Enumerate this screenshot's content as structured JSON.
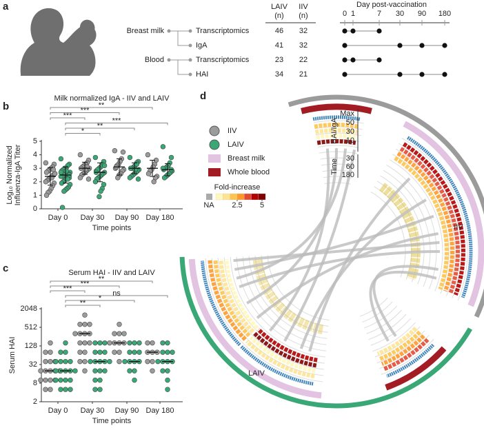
{
  "panel_a": {
    "label": "a",
    "header": {
      "laiv": [
        "LAIV",
        "(n)"
      ],
      "iiv": [
        "IIV",
        "(n)"
      ],
      "timeline_title": "Day post-vaccination"
    },
    "days": [
      0,
      1,
      7,
      30,
      90,
      180
    ],
    "groups": [
      {
        "name": "Breast milk",
        "assays": [
          {
            "name": "Transcriptomics",
            "laiv_n": 46,
            "iiv_n": 32,
            "days": [
              0,
              1,
              7
            ]
          },
          {
            "name": "IgA",
            "laiv_n": 41,
            "iiv_n": 32,
            "days": [
              0,
              30,
              90,
              180
            ]
          }
        ]
      },
      {
        "name": "Blood",
        "assays": [
          {
            "name": "Transcriptomics",
            "laiv_n": 23,
            "iiv_n": 22,
            "days": [
              0,
              1,
              7
            ]
          },
          {
            "name": "HAI",
            "laiv_n": 34,
            "iiv_n": 21,
            "days": [
              0,
              30,
              90,
              180
            ]
          }
        ]
      }
    ]
  },
  "panel_b": {
    "label": "b",
    "type": "dot",
    "title": "Milk normalized IgA - IIV and LAIV",
    "x_label": "Time points",
    "y_label": [
      "Log₁₀ Normalized",
      "Influenza-IgA Titer"
    ],
    "categories": [
      "Day 0",
      "Day 30",
      "Day 90",
      "Day 180"
    ],
    "ylim": [
      0,
      5
    ],
    "yticks": [
      0,
      1,
      2,
      3,
      4,
      5
    ],
    "groups": [
      {
        "color": "#9b9b9b",
        "points": [
          [
            3.4,
            3.3,
            3.1,
            3.0,
            2.9,
            2.8,
            2.7,
            2.6,
            2.5,
            2.4,
            2.3,
            2.2,
            2.1,
            2.0,
            1.9,
            1.7,
            1.5,
            1.3,
            1.2,
            1.0,
            2.6,
            2.9,
            2.3
          ],
          [
            4.0,
            3.6,
            3.4,
            3.3,
            3.2,
            3.1,
            3.0,
            3.0,
            2.9,
            2.8,
            2.7,
            2.6,
            2.5,
            2.3,
            2.2,
            3.1,
            2.9
          ],
          [
            4.3,
            4.2,
            3.7,
            3.5,
            3.3,
            3.2,
            3.0,
            2.9,
            2.8,
            2.6,
            2.5,
            2.3,
            3.1
          ],
          [
            4.0,
            3.6,
            3.3,
            3.1,
            2.9,
            2.8,
            2.6,
            2.4,
            2.3,
            2.0
          ]
        ],
        "means": [
          2.4,
          3.0,
          3.1,
          3.0
        ],
        "sd": [
          0.65,
          0.45,
          0.6,
          0.6
        ]
      },
      {
        "color": "#3aa876",
        "points": [
          [
            3.7,
            3.3,
            3.2,
            3.0,
            3.0,
            2.9,
            2.8,
            2.7,
            2.6,
            2.6,
            2.5,
            2.5,
            2.4,
            2.4,
            2.3,
            2.3,
            2.2,
            2.1,
            2.0,
            1.9,
            1.8,
            1.6,
            1.5,
            1.4,
            1.3,
            0.1,
            2.7,
            2.5,
            2.2,
            2.8
          ],
          [
            3.8,
            3.5,
            3.3,
            3.1,
            3.0,
            2.9,
            2.8,
            2.7,
            2.6,
            2.5,
            2.4,
            2.3,
            2.2,
            2.0,
            1.8,
            1.5,
            1.3,
            0.9,
            2.9,
            2.7,
            3.2
          ],
          [
            3.8,
            3.5,
            3.4,
            3.2,
            3.1,
            3.0,
            3.0,
            2.9,
            2.8,
            2.7,
            2.6,
            2.5,
            2.4,
            2.3,
            2.2,
            3.3,
            2.9
          ],
          [
            4.6,
            3.8,
            3.4,
            3.2,
            3.1,
            3.0,
            2.9,
            2.8,
            2.7,
            2.6,
            2.5,
            2.4,
            2.3,
            3.0,
            2.9
          ]
        ],
        "means": [
          2.5,
          2.7,
          3.0,
          2.9
        ],
        "sd": [
          0.6,
          0.7,
          0.4,
          0.45
        ]
      }
    ],
    "significance": [
      "**",
      "***",
      "***",
      "***",
      "**",
      "*"
    ]
  },
  "panel_c": {
    "label": "c",
    "type": "dot",
    "title": "Serum HAI - IIV and LAIV",
    "x_label": "Time points",
    "y_label": [
      "Serum HAI"
    ],
    "categories": [
      "Day 0",
      "Day 30",
      "Day 90",
      "Day 180"
    ],
    "log_base": 2,
    "ylim": [
      2,
      2048
    ],
    "yticks": [
      2,
      8,
      32,
      128,
      512,
      2048
    ],
    "groups": [
      {
        "color": "#9b9b9b",
        "points": [
          [
            5,
            5,
            10,
            10,
            10,
            10,
            20,
            20,
            20,
            20,
            20,
            40,
            40,
            40,
            80,
            80,
            160
          ],
          [
            20,
            40,
            40,
            80,
            80,
            160,
            160,
            160,
            320,
            320,
            320,
            320,
            640,
            640,
            640,
            1280
          ],
          [
            40,
            80,
            80,
            160,
            160,
            160,
            160,
            320,
            320,
            320,
            640
          ],
          [
            20,
            40,
            40,
            80,
            80,
            80,
            160,
            160
          ]
        ],
        "means": [
          20,
          320,
          160,
          80
        ]
      },
      {
        "color": "#3aa876",
        "points": [
          [
            5,
            5,
            5,
            10,
            10,
            10,
            10,
            20,
            20,
            20,
            20,
            20,
            40,
            40,
            40,
            40,
            80,
            80,
            160
          ],
          [
            5,
            5,
            10,
            10,
            20,
            20,
            20,
            40,
            40,
            40,
            40,
            40,
            80,
            80,
            80,
            160,
            160,
            160
          ],
          [
            10,
            20,
            20,
            40,
            40,
            40,
            40,
            80,
            80,
            80,
            160,
            160,
            160
          ],
          [
            5,
            10,
            20,
            20,
            40,
            40,
            40,
            40,
            80,
            80,
            80,
            160,
            160
          ]
        ],
        "means": [
          20,
          40,
          40,
          40
        ]
      }
    ],
    "significance": [
      "**",
      "***",
      "***",
      "ns",
      "*",
      "**"
    ]
  },
  "panel_d": {
    "label": "d",
    "legend": [
      {
        "name": "IIV",
        "color": "#9b9b9b",
        "shape": "circle"
      },
      {
        "name": "LAIV",
        "color": "#3aa876",
        "shape": "circle"
      },
      {
        "name": "Breast milk",
        "color": "#e2c3e2",
        "shape": "square"
      },
      {
        "name": "Whole blood",
        "color": "#a31c24",
        "shape": "square"
      }
    ],
    "fold_legend": {
      "title": "Fold-increase",
      "na_label": "NA",
      "ticks": [
        2.5,
        5
      ]
    },
    "axis_labels": {
      "hai_iga": "HAI/IgA",
      "hai_ticks": [
        "Max",
        "50",
        "30",
        "10"
      ],
      "time": "Time",
      "time_ticks": [
        "30",
        "60",
        "180"
      ]
    },
    "arc_labels": {
      "iiv": "IIV",
      "laiv": "LAIV"
    }
  }
}
